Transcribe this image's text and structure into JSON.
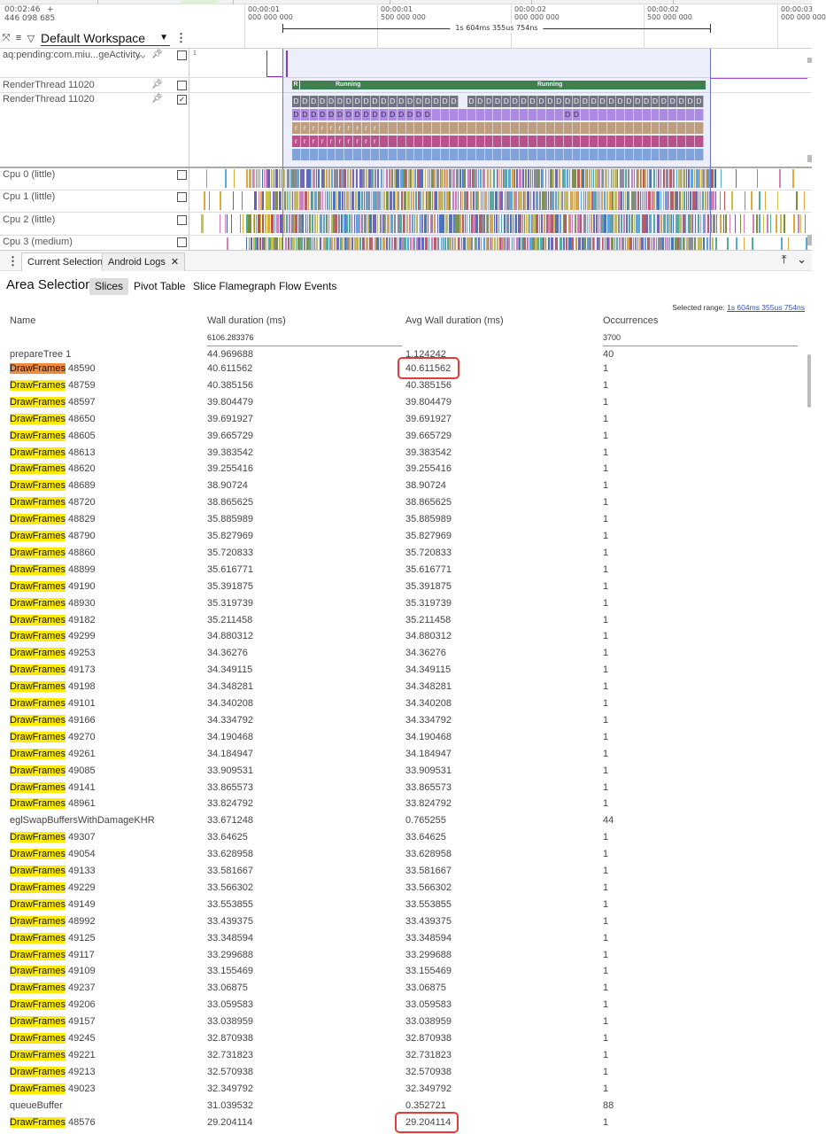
{
  "timeline": {
    "left_timestamp": [
      "00:02:46",
      "446 098 685"
    ],
    "left_plus": "+",
    "ticks": [
      {
        "label": [
          "00:00:01",
          "000 000 000"
        ]
      },
      {
        "label": [
          "00:00:01",
          "500 000 000"
        ]
      },
      {
        "label": [
          "00:00:02",
          "000 000 000"
        ]
      },
      {
        "label": [
          "00:00:02",
          "500 000 000"
        ]
      },
      {
        "label": [
          "00:00:03",
          "000 000 000"
        ]
      }
    ],
    "selected_span": "1s 604ms 355us 754ns",
    "workspace": "Default Workspace"
  },
  "tracks": {
    "pending_activity": "aq:pending:com.miu...geActivity",
    "pending_marker": "1",
    "render_thread_a": "RenderThread 11020",
    "render_thread_b": "RenderThread 11020",
    "state_r": "R",
    "running_1": "Running",
    "running_2": "Running",
    "slice_d": "D",
    "slice_r": "r",
    "cpu0": "Cpu 0 (little)",
    "cpu1": "Cpu 1 (little)",
    "cpu2": "Cpu 2 (little)",
    "cpu3": "Cpu 3 (medium)"
  },
  "panel": {
    "tabs": [
      "Current Selection",
      "Android Logs"
    ],
    "area_title": "Area Selection",
    "subtabs": [
      "Slices",
      "Pivot Table",
      "Slice Flamegraph",
      "Flow Events"
    ],
    "selected_range_label": "Selected range: ",
    "selected_range_value": "1s 604ms 355us 754ns"
  },
  "table": {
    "columns": [
      "Name",
      "Wall duration (ms)",
      "Avg Wall duration (ms)",
      "Occurrences"
    ],
    "totals": {
      "wall": "6106.283376",
      "occurrences": "3700"
    },
    "cut_row": {
      "name": "prepareTree 1",
      "wall": "44.969688",
      "avg": "1.124242",
      "occ": "40"
    },
    "rows": [
      {
        "name": "DrawFrames",
        "id": "48590",
        "wall": "40.611562",
        "avg": "40.611562",
        "occ": "1",
        "hl": "o"
      },
      {
        "name": "DrawFrames",
        "id": "48759",
        "wall": "40.385156",
        "avg": "40.385156",
        "occ": "1",
        "hl": "y"
      },
      {
        "name": "DrawFrames",
        "id": "48597",
        "wall": "39.804479",
        "avg": "39.804479",
        "occ": "1",
        "hl": "y"
      },
      {
        "name": "DrawFrames",
        "id": "48650",
        "wall": "39.691927",
        "avg": "39.691927",
        "occ": "1",
        "hl": "y"
      },
      {
        "name": "DrawFrames",
        "id": "48605",
        "wall": "39.665729",
        "avg": "39.665729",
        "occ": "1",
        "hl": "y"
      },
      {
        "name": "DrawFrames",
        "id": "48613",
        "wall": "39.383542",
        "avg": "39.383542",
        "occ": "1",
        "hl": "y"
      },
      {
        "name": "DrawFrames",
        "id": "48620",
        "wall": "39.255416",
        "avg": "39.255416",
        "occ": "1",
        "hl": "y"
      },
      {
        "name": "DrawFrames",
        "id": "48689",
        "wall": "38.90724",
        "avg": "38.90724",
        "occ": "1",
        "hl": "y"
      },
      {
        "name": "DrawFrames",
        "id": "48720",
        "wall": "38.865625",
        "avg": "38.865625",
        "occ": "1",
        "hl": "y"
      },
      {
        "name": "DrawFrames",
        "id": "48829",
        "wall": "35.885989",
        "avg": "35.885989",
        "occ": "1",
        "hl": "y"
      },
      {
        "name": "DrawFrames",
        "id": "48790",
        "wall": "35.827969",
        "avg": "35.827969",
        "occ": "1",
        "hl": "y"
      },
      {
        "name": "DrawFrames",
        "id": "48860",
        "wall": "35.720833",
        "avg": "35.720833",
        "occ": "1",
        "hl": "y"
      },
      {
        "name": "DrawFrames",
        "id": "48899",
        "wall": "35.616771",
        "avg": "35.616771",
        "occ": "1",
        "hl": "y"
      },
      {
        "name": "DrawFrames",
        "id": "49190",
        "wall": "35.391875",
        "avg": "35.391875",
        "occ": "1",
        "hl": "y"
      },
      {
        "name": "DrawFrames",
        "id": "48930",
        "wall": "35.319739",
        "avg": "35.319739",
        "occ": "1",
        "hl": "y"
      },
      {
        "name": "DrawFrames",
        "id": "49182",
        "wall": "35.211458",
        "avg": "35.211458",
        "occ": "1",
        "hl": "y"
      },
      {
        "name": "DrawFrames",
        "id": "49299",
        "wall": "34.880312",
        "avg": "34.880312",
        "occ": "1",
        "hl": "y"
      },
      {
        "name": "DrawFrames",
        "id": "49253",
        "wall": "34.36276",
        "avg": "34.36276",
        "occ": "1",
        "hl": "y"
      },
      {
        "name": "DrawFrames",
        "id": "49173",
        "wall": "34.349115",
        "avg": "34.349115",
        "occ": "1",
        "hl": "y"
      },
      {
        "name": "DrawFrames",
        "id": "49198",
        "wall": "34.348281",
        "avg": "34.348281",
        "occ": "1",
        "hl": "y"
      },
      {
        "name": "DrawFrames",
        "id": "49101",
        "wall": "34.340208",
        "avg": "34.340208",
        "occ": "1",
        "hl": "y"
      },
      {
        "name": "DrawFrames",
        "id": "49166",
        "wall": "34.334792",
        "avg": "34.334792",
        "occ": "1",
        "hl": "y"
      },
      {
        "name": "DrawFrames",
        "id": "49270",
        "wall": "34.190468",
        "avg": "34.190468",
        "occ": "1",
        "hl": "y"
      },
      {
        "name": "DrawFrames",
        "id": "49261",
        "wall": "34.184947",
        "avg": "34.184947",
        "occ": "1",
        "hl": "y"
      },
      {
        "name": "DrawFrames",
        "id": "49085",
        "wall": "33.909531",
        "avg": "33.909531",
        "occ": "1",
        "hl": "y"
      },
      {
        "name": "DrawFrames",
        "id": "49141",
        "wall": "33.865573",
        "avg": "33.865573",
        "occ": "1",
        "hl": "y"
      },
      {
        "name": "DrawFrames",
        "id": "48961",
        "wall": "33.824792",
        "avg": "33.824792",
        "occ": "1",
        "hl": "y"
      },
      {
        "name": "eglSwapBuffersWithDamageKHR",
        "id": "",
        "wall": "33.671248",
        "avg": "0.765255",
        "occ": "44",
        "hl": ""
      },
      {
        "name": "DrawFrames",
        "id": "49307",
        "wall": "33.64625",
        "avg": "33.64625",
        "occ": "1",
        "hl": "y"
      },
      {
        "name": "DrawFrames",
        "id": "49054",
        "wall": "33.628958",
        "avg": "33.628958",
        "occ": "1",
        "hl": "y"
      },
      {
        "name": "DrawFrames",
        "id": "49133",
        "wall": "33.581667",
        "avg": "33.581667",
        "occ": "1",
        "hl": "y"
      },
      {
        "name": "DrawFrames",
        "id": "49229",
        "wall": "33.566302",
        "avg": "33.566302",
        "occ": "1",
        "hl": "y"
      },
      {
        "name": "DrawFrames",
        "id": "49149",
        "wall": "33.553855",
        "avg": "33.553855",
        "occ": "1",
        "hl": "y"
      },
      {
        "name": "DrawFrames",
        "id": "48992",
        "wall": "33.439375",
        "avg": "33.439375",
        "occ": "1",
        "hl": "y"
      },
      {
        "name": "DrawFrames",
        "id": "49125",
        "wall": "33.348594",
        "avg": "33.348594",
        "occ": "1",
        "hl": "y"
      },
      {
        "name": "DrawFrames",
        "id": "49117",
        "wall": "33.299688",
        "avg": "33.299688",
        "occ": "1",
        "hl": "y"
      },
      {
        "name": "DrawFrames",
        "id": "49109",
        "wall": "33.155469",
        "avg": "33.155469",
        "occ": "1",
        "hl": "y"
      },
      {
        "name": "DrawFrames",
        "id": "49237",
        "wall": "33.06875",
        "avg": "33.06875",
        "occ": "1",
        "hl": "y"
      },
      {
        "name": "DrawFrames",
        "id": "49206",
        "wall": "33.059583",
        "avg": "33.059583",
        "occ": "1",
        "hl": "y"
      },
      {
        "name": "DrawFrames",
        "id": "49157",
        "wall": "33.038959",
        "avg": "33.038959",
        "occ": "1",
        "hl": "y"
      },
      {
        "name": "DrawFrames",
        "id": "49245",
        "wall": "32.870938",
        "avg": "32.870938",
        "occ": "1",
        "hl": "y"
      },
      {
        "name": "DrawFrames",
        "id": "49221",
        "wall": "32.731823",
        "avg": "32.731823",
        "occ": "1",
        "hl": "y"
      },
      {
        "name": "DrawFrames",
        "id": "49213",
        "wall": "32.570938",
        "avg": "32.570938",
        "occ": "1",
        "hl": "y"
      },
      {
        "name": "DrawFrames",
        "id": "49023",
        "wall": "32.349792",
        "avg": "32.349792",
        "occ": "1",
        "hl": "y"
      },
      {
        "name": "queueBuffer",
        "id": "",
        "wall": "31.039532",
        "avg": "0.352721",
        "occ": "88",
        "hl": ""
      },
      {
        "name": "DrawFrames",
        "id": "48576",
        "wall": "29.204114",
        "avg": "29.204114",
        "occ": "1",
        "hl": "y"
      }
    ],
    "annotated_values": [
      "40.611562",
      "29.204114"
    ]
  },
  "colors": {
    "highlight_yellow": "#ffeb00",
    "highlight_orange": "#f08a3c",
    "annotation_red": "#e23b3b",
    "running_green": "#2e7d32",
    "selection_blue": "#6b74d8"
  }
}
